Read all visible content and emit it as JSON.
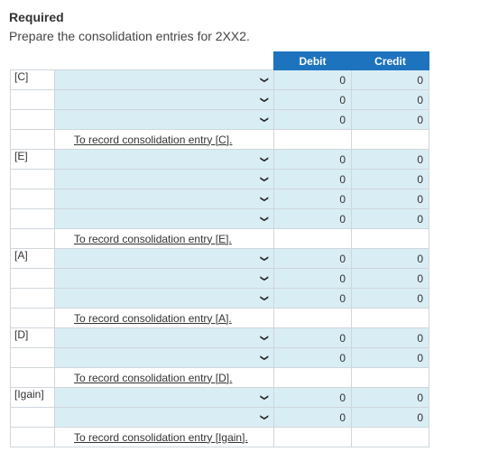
{
  "header": {
    "title": "Required",
    "instruction": "Prepare the consolidation entries for 2XX2."
  },
  "table": {
    "debit_label": "Debit",
    "credit_label": "Credit",
    "groups": [
      {
        "key": "[C]",
        "rows": [
          {
            "debit": "0",
            "credit": "0"
          },
          {
            "debit": "0",
            "credit": "0"
          },
          {
            "debit": "0",
            "credit": "0"
          }
        ],
        "memo": "To record consolidation entry [C]."
      },
      {
        "key": "[E]",
        "rows": [
          {
            "debit": "0",
            "credit": "0"
          },
          {
            "debit": "0",
            "credit": "0"
          },
          {
            "debit": "0",
            "credit": "0"
          },
          {
            "debit": "0",
            "credit": "0"
          }
        ],
        "memo": "To record consolidation entry [E]."
      },
      {
        "key": "[A]",
        "rows": [
          {
            "debit": "0",
            "credit": "0"
          },
          {
            "debit": "0",
            "credit": "0"
          },
          {
            "debit": "0",
            "credit": "0"
          }
        ],
        "memo": "To record consolidation entry [A]."
      },
      {
        "key": "[D]",
        "rows": [
          {
            "debit": "0",
            "credit": "0"
          },
          {
            "debit": "0",
            "credit": "0"
          }
        ],
        "memo": "To record consolidation entry [D]."
      },
      {
        "key": "[Igain]",
        "rows": [
          {
            "debit": "0",
            "credit": "0"
          },
          {
            "debit": "0",
            "credit": "0"
          }
        ],
        "memo": "To record consolidation entry [Igain]."
      }
    ]
  },
  "colors": {
    "header_bg": "#1e73be",
    "input_bg": "#d9edf4",
    "border": "#cfd6dc"
  },
  "icons": {
    "dropdown": "chevron-down-icon"
  }
}
